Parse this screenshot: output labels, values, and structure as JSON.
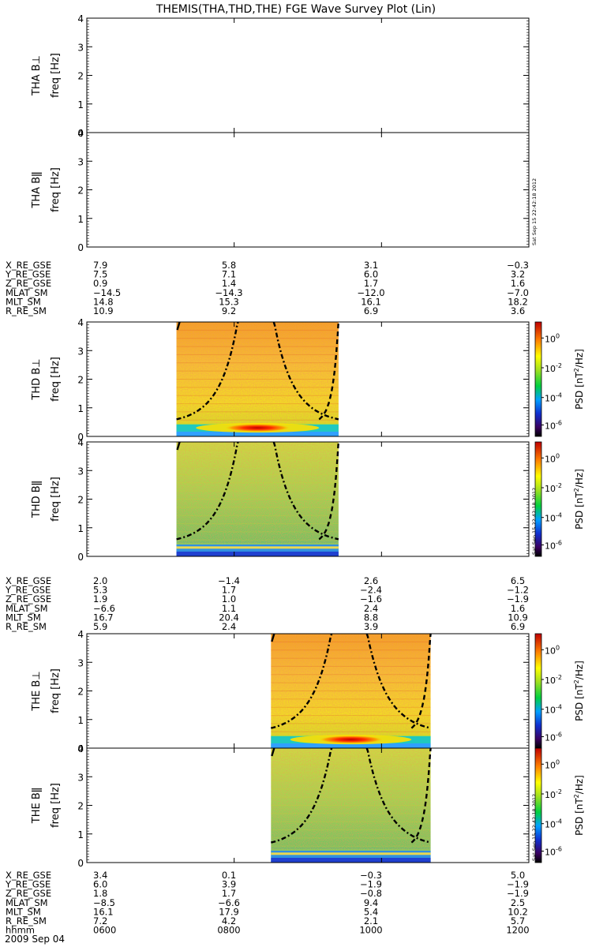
{
  "title": "THEMIS(THA,THD,THE) FGE Wave Survey Plot (Lin)",
  "colorbar": {
    "label_main": "PSD [nT",
    "label_sup": "2",
    "label_tail": "/Hz]",
    "tick_base": "10",
    "tick_exponents": [
      "0",
      "-2",
      "-4",
      "-6"
    ]
  },
  "stamp_text": "Sat Sep 15 22:42:18 2012",
  "date_label": "2009 Sep 04",
  "chart_data": {
    "type": "heatmap",
    "x_unit": "hhmm",
    "x_range": [
      "0600",
      "1200"
    ],
    "x_ticks": [
      "0600",
      "0800",
      "1000",
      "1200"
    ],
    "y_range": [
      0,
      4
    ],
    "y_ticks": [
      "0",
      "1",
      "2",
      "3",
      "4"
    ],
    "panels": [
      {
        "id": "tha-bperp",
        "label": "THA B⊥",
        "ylabel": "freq [Hz]",
        "has_data": false,
        "colorbar": false,
        "stamp": false
      },
      {
        "id": "tha-bpar",
        "label": "THA Bǁ",
        "ylabel": "freq [Hz]",
        "has_data": false,
        "colorbar": false,
        "stamp": true
      },
      {
        "id": "thd-bperp",
        "label": "THD B⊥",
        "ylabel": "freq [Hz]",
        "has_data": true,
        "data_span": [
          "0713",
          "0925"
        ],
        "cyclotron_min_hz": 0.6,
        "band_hz": 0.3,
        "colorbar": true,
        "stamp": false
      },
      {
        "id": "thd-bpar",
        "label": "THD Bǁ",
        "ylabel": "freq [Hz]",
        "has_data": true,
        "data_span": [
          "0713",
          "0925"
        ],
        "cyclotron_min_hz": 0.6,
        "band_hz": 0.3,
        "colorbar": true,
        "stamp": true
      },
      {
        "id": "the-bperp",
        "label": "THE B⊥",
        "ylabel": "freq [Hz]",
        "has_data": true,
        "data_span": [
          "0830",
          "1040"
        ],
        "cyclotron_min_hz": 0.7,
        "band_hz": 0.3,
        "colorbar": true,
        "stamp": false
      },
      {
        "id": "the-bpar",
        "label": "THE Bǁ",
        "ylabel": "freq [Hz]",
        "has_data": true,
        "data_span": [
          "0830",
          "1040"
        ],
        "cyclotron_min_hz": 0.7,
        "band_hz": 0.3,
        "colorbar": true,
        "stamp": true
      }
    ],
    "ephemeris": [
      {
        "probe": "THA",
        "rows": [
          {
            "name": "X_RE_GSE",
            "values": [
              "7.9",
              "5.8",
              "3.1",
              "−0.3"
            ]
          },
          {
            "name": "Y_RE_GSE",
            "values": [
              "7.5",
              "7.1",
              "6.0",
              "3.2"
            ]
          },
          {
            "name": "Z_RE_GSE",
            "values": [
              "0.9",
              "1.4",
              "1.7",
              "1.6"
            ]
          },
          {
            "name": "MLAT_SM",
            "values": [
              "−14.5",
              "−14.3",
              "−12.0",
              "−7.0"
            ]
          },
          {
            "name": "MLT_SM",
            "values": [
              "14.8",
              "15.3",
              "16.1",
              "18.2"
            ]
          },
          {
            "name": "R_RE_SM",
            "values": [
              "10.9",
              "9.2",
              "6.9",
              "3.6"
            ]
          }
        ]
      },
      {
        "probe": "THD",
        "rows": [
          {
            "name": "X_RE_GSE",
            "values": [
              "2.0",
              "−1.4",
              "2.6",
              "6.5"
            ]
          },
          {
            "name": "Y_RE_GSE",
            "values": [
              "5.3",
              "1.7",
              "−2.4",
              "−1.2"
            ]
          },
          {
            "name": "Z_RE_GSE",
            "values": [
              "1.9",
              "1.0",
              "−1.6",
              "−1.9"
            ]
          },
          {
            "name": "MLAT_SM",
            "values": [
              "−6.6",
              "1.1",
              "2.4",
              "1.6"
            ]
          },
          {
            "name": "MLT_SM",
            "values": [
              "16.7",
              "20.4",
              "8.8",
              "10.9"
            ]
          },
          {
            "name": "R_RE_SM",
            "values": [
              "5.9",
              "2.4",
              "3.9",
              "6.9"
            ]
          }
        ]
      },
      {
        "probe": "THE",
        "rows": [
          {
            "name": "X_RE_GSE",
            "values": [
              "3.4",
              "0.1",
              "−0.3",
              "5.0"
            ]
          },
          {
            "name": "Y_RE_GSE",
            "values": [
              "6.0",
              "3.9",
              "−1.9",
              "−1.9"
            ]
          },
          {
            "name": "Z_RE_GSE",
            "values": [
              "1.8",
              "1.7",
              "−0.8",
              "−1.9"
            ]
          },
          {
            "name": "MLAT_SM",
            "values": [
              "−8.5",
              "−6.6",
              "9.4",
              "2.5"
            ]
          },
          {
            "name": "MLT_SM",
            "values": [
              "16.1",
              "17.9",
              "5.4",
              "10.2"
            ]
          },
          {
            "name": "R_RE_SM",
            "values": [
              "7.2",
              "4.2",
              "2.1",
              "5.7"
            ]
          },
          {
            "name": "hhmm",
            "values": [
              "0600",
              "0800",
              "1000",
              "1200"
            ]
          }
        ]
      }
    ]
  }
}
